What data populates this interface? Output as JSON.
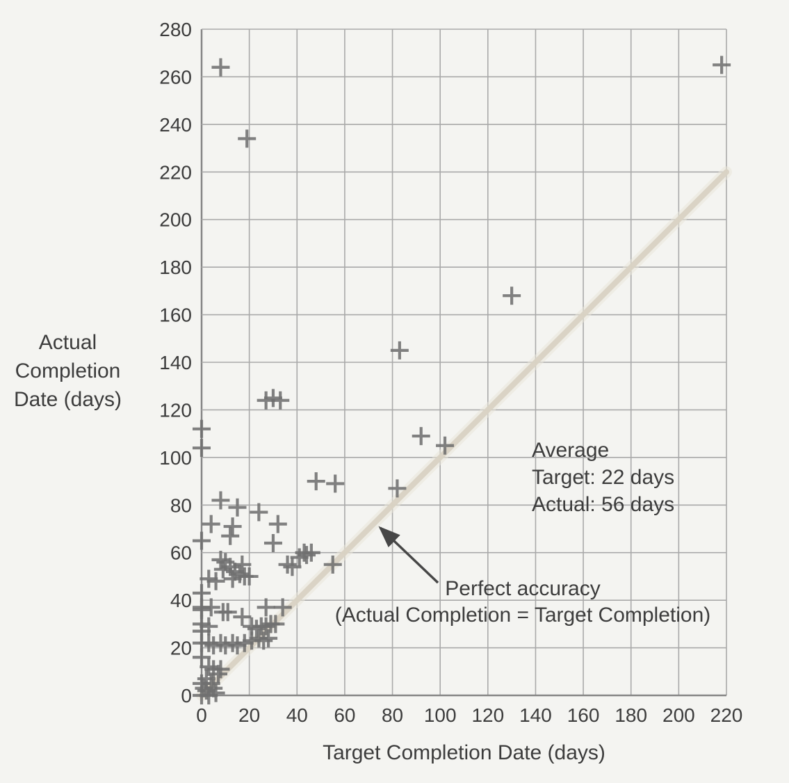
{
  "page": {
    "background": "#f4f4f1"
  },
  "colors": {
    "grid": "#a9a9a9",
    "axis": "#858585",
    "marker": "#6f6f6f",
    "diagonal_line": "#d8d2c3",
    "diagonal_glow": "#e9e5d8",
    "text": "#3c3c3c",
    "arrow": "#474747"
  },
  "y_axis_label": {
    "lines": [
      "Actual",
      "Completion",
      "Date (days)"
    ]
  },
  "x_axis_label": "Target Completion Date (days)",
  "annotations": {
    "average_line1": "Average",
    "average_line2": "Target: 22 days",
    "average_line3": "Actual: 56 days",
    "perfect_line1": "Perfect accuracy",
    "perfect_line2": "(Actual Completion = Target Completion)"
  },
  "chart_data": {
    "type": "scatter",
    "title": "",
    "xlabel": "Target Completion Date (days)",
    "ylabel": "Actual Completion Date (days)",
    "xlim": [
      0,
      220
    ],
    "ylim": [
      0,
      280
    ],
    "x_ticks": [
      0,
      20,
      40,
      60,
      80,
      100,
      120,
      140,
      160,
      180,
      200,
      220
    ],
    "y_ticks": [
      0,
      20,
      40,
      60,
      80,
      100,
      120,
      140,
      160,
      180,
      200,
      220,
      240,
      260,
      280
    ],
    "grid": true,
    "legend": "none",
    "marker": "plus",
    "reference_line": {
      "type": "identity",
      "from": [
        0,
        0
      ],
      "to": [
        220,
        220
      ],
      "label": "Perfect accuracy (Actual Completion = Target Completion)"
    },
    "averages": {
      "target_days": 22,
      "actual_days": 56
    },
    "points": [
      [
        8,
        264
      ],
      [
        19,
        234
      ],
      [
        218,
        265
      ],
      [
        130,
        168
      ],
      [
        83,
        145
      ],
      [
        27,
        124
      ],
      [
        30,
        125
      ],
      [
        33,
        124
      ],
      [
        92,
        109
      ],
      [
        102,
        105
      ],
      [
        0,
        112
      ],
      [
        0,
        104
      ],
      [
        48,
        90
      ],
      [
        56,
        89
      ],
      [
        82,
        87
      ],
      [
        8,
        82
      ],
      [
        15,
        79
      ],
      [
        24,
        77
      ],
      [
        4,
        72
      ],
      [
        13,
        71
      ],
      [
        32,
        72
      ],
      [
        12,
        67
      ],
      [
        0,
        65
      ],
      [
        30,
        64
      ],
      [
        43,
        60
      ],
      [
        46,
        60
      ],
      [
        41,
        58
      ],
      [
        44,
        59
      ],
      [
        36,
        55
      ],
      [
        38,
        54
      ],
      [
        55,
        55
      ],
      [
        8,
        57
      ],
      [
        10,
        56
      ],
      [
        17,
        55
      ],
      [
        9,
        53
      ],
      [
        12,
        54
      ],
      [
        14,
        52
      ],
      [
        16,
        51
      ],
      [
        13,
        49
      ],
      [
        18,
        50
      ],
      [
        20,
        50
      ],
      [
        6,
        48
      ],
      [
        3,
        49
      ],
      [
        0,
        43
      ],
      [
        0,
        37
      ],
      [
        0,
        36
      ],
      [
        4,
        37
      ],
      [
        9,
        35
      ],
      [
        11,
        35
      ],
      [
        17,
        33
      ],
      [
        27,
        37
      ],
      [
        34,
        37
      ],
      [
        0,
        30
      ],
      [
        3,
        29
      ],
      [
        0,
        27
      ],
      [
        21,
        29
      ],
      [
        23,
        28
      ],
      [
        25,
        29
      ],
      [
        27,
        29
      ],
      [
        29,
        30
      ],
      [
        31,
        30
      ],
      [
        0,
        22
      ],
      [
        3,
        22
      ],
      [
        5,
        21
      ],
      [
        8,
        22
      ],
      [
        10,
        21
      ],
      [
        13,
        22
      ],
      [
        15,
        21
      ],
      [
        18,
        22
      ],
      [
        21,
        23
      ],
      [
        24,
        24
      ],
      [
        26,
        23
      ],
      [
        28,
        24
      ],
      [
        0,
        16
      ],
      [
        3,
        12
      ],
      [
        5,
        11
      ],
      [
        8,
        11
      ],
      [
        7,
        9
      ],
      [
        0,
        5
      ],
      [
        1,
        3
      ],
      [
        2,
        7
      ],
      [
        2,
        2
      ],
      [
        4,
        5
      ],
      [
        5,
        3
      ],
      [
        0,
        0
      ],
      [
        3,
        0
      ],
      [
        6,
        1
      ]
    ]
  }
}
